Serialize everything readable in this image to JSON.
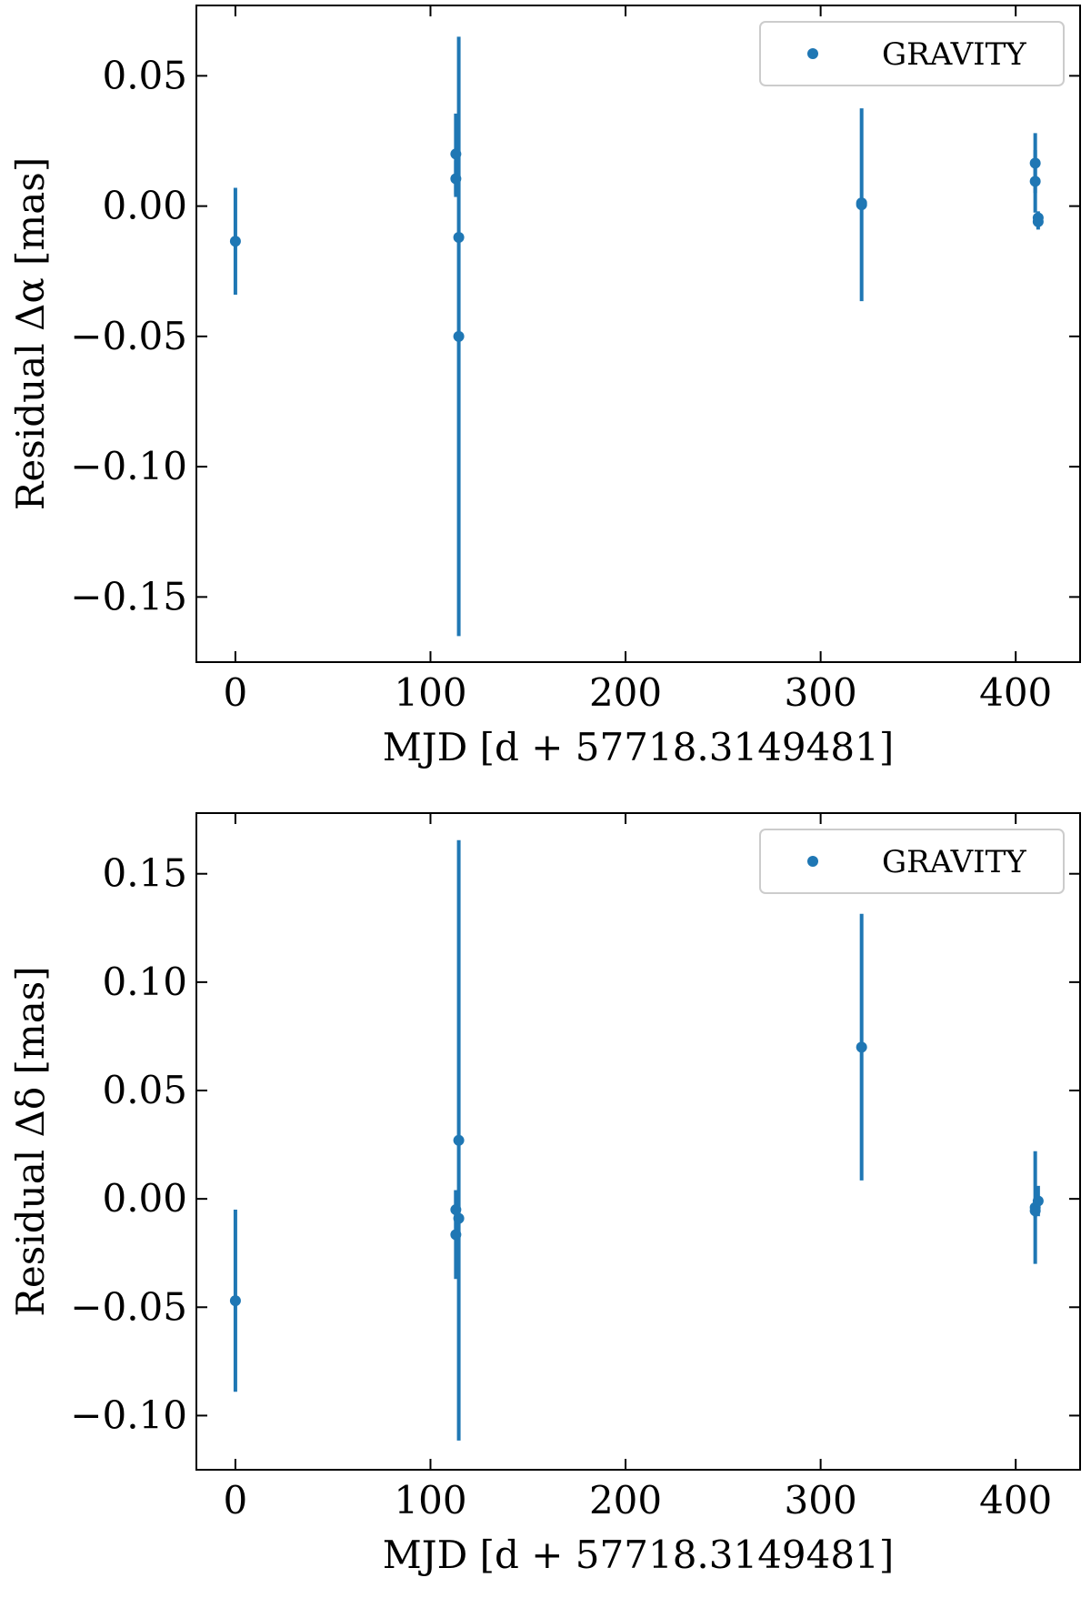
{
  "chart_data": [
    {
      "type": "scatter",
      "xlabel": "MJD [d + 57718.3149481]",
      "ylabel": "Residual Δα [mas]",
      "xlim": [
        -20,
        433
      ],
      "ylim": [
        -0.175,
        0.077
      ],
      "xticks": [
        0,
        100,
        200,
        300,
        400
      ],
      "xtick_labels": [
        "0",
        "100",
        "200",
        "300",
        "400"
      ],
      "yticks": [
        0.05,
        0.0,
        -0.05,
        -0.1,
        -0.15
      ],
      "ytick_labels": [
        "0.05",
        "0.00",
        "−0.05",
        "−0.10",
        "−0.15"
      ],
      "grid": false,
      "legend_position": "top-right",
      "color": "#1f77b4",
      "series": [
        {
          "name": "GRAVITY",
          "points": [
            {
              "x": 0,
              "y": -0.0135,
              "err": 0.0205
            },
            {
              "x": 113,
              "y": 0.02,
              "err": 0.0155
            },
            {
              "x": 113,
              "y": 0.0105,
              "err": 0.007
            },
            {
              "x": 114.5,
              "y": -0.012,
              "err": 0.0015
            },
            {
              "x": 114.5,
              "y": -0.05,
              "err": 0.115
            },
            {
              "x": 321,
              "y": 0.0005,
              "err": 0.037
            },
            {
              "x": 321,
              "y": 0.0012,
              "err": 0.0015
            },
            {
              "x": 410,
              "y": 0.0165,
              "err": 0.0115
            },
            {
              "x": 410,
              "y": 0.0095,
              "err": 0.012
            },
            {
              "x": 411.5,
              "y": -0.0045,
              "err": 0.0025
            },
            {
              "x": 411.5,
              "y": -0.006,
              "err": 0.003
            }
          ]
        }
      ]
    },
    {
      "type": "scatter",
      "xlabel": "MJD [d + 57718.3149481]",
      "ylabel": "Residual Δδ [mas]",
      "xlim": [
        -20,
        433
      ],
      "ylim": [
        -0.125,
        0.178
      ],
      "xticks": [
        0,
        100,
        200,
        300,
        400
      ],
      "xtick_labels": [
        "0",
        "100",
        "200",
        "300",
        "400"
      ],
      "yticks": [
        0.15,
        0.1,
        0.05,
        0.0,
        -0.05,
        -0.1
      ],
      "ytick_labels": [
        "0.15",
        "0.10",
        "0.05",
        "0.00",
        "−0.05",
        "−0.10"
      ],
      "grid": false,
      "legend_position": "top-right",
      "color": "#1f77b4",
      "series": [
        {
          "name": "GRAVITY",
          "points": [
            {
              "x": 0,
              "y": -0.047,
              "err": 0.042
            },
            {
              "x": 113,
              "y": -0.005,
              "err": 0.009
            },
            {
              "x": 113,
              "y": -0.0165,
              "err": 0.0205
            },
            {
              "x": 114.5,
              "y": -0.009,
              "err": 0.002
            },
            {
              "x": 114.5,
              "y": 0.027,
              "err": 0.1385
            },
            {
              "x": 321,
              "y": 0.07,
              "err": 0.0615
            },
            {
              "x": 410,
              "y": -0.004,
              "err": 0.026
            },
            {
              "x": 410,
              "y": -0.0055,
              "err": 0.003
            },
            {
              "x": 411.5,
              "y": -0.001,
              "err": 0.007
            }
          ]
        }
      ]
    }
  ]
}
